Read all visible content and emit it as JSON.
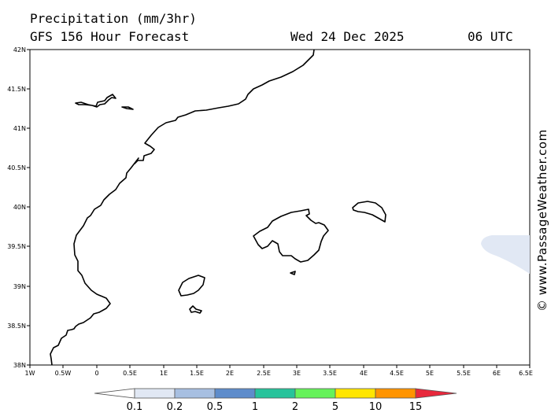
{
  "header": {
    "title": "Precipitation (mm/3hr)",
    "subtitle": "GFS 156 Hour Forecast",
    "date": "Wed 24 Dec 2025",
    "time": "06 UTC"
  },
  "map": {
    "lat_ticks": [
      "42N",
      "41.5N",
      "41N",
      "40.5N",
      "40N",
      "39.5N",
      "39N",
      "38.5N",
      "38N"
    ],
    "lon_ticks": [
      "1W",
      "0.5W",
      "0",
      "0.5E",
      "1E",
      "1.5E",
      "2E",
      "2.5E",
      "3E",
      "3.5E",
      "4E",
      "4.5E",
      "5E",
      "5.5E",
      "6E",
      "6.5E"
    ],
    "lon_range": [
      -1,
      6.5
    ],
    "lat_range": [
      38,
      42
    ],
    "land_color": "#ffffff",
    "coast_color": "#000000",
    "precip_patch_color": "#e1e8f4"
  },
  "color_scale": {
    "labels": [
      "0.1",
      "0.2",
      "0.5",
      "1",
      "2",
      "5",
      "10",
      "15"
    ],
    "colors": [
      "#ffffff",
      "#e1e8f4",
      "#a7bfe1",
      "#5e8ccb",
      "#27c39b",
      "#66f25a",
      "#ffe600",
      "#ff9400",
      "#e8283c"
    ]
  },
  "watermark": "© www.PassageWeather.com"
}
